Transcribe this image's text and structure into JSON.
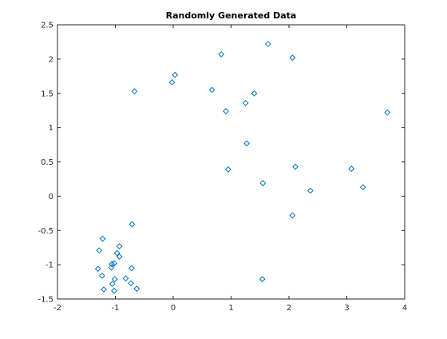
{
  "chart_data": {
    "type": "scatter",
    "title": "Randomly Generated Data",
    "xlabel": "",
    "ylabel": "",
    "xlim": [
      -2,
      4
    ],
    "ylim": [
      -1.5,
      2.5
    ],
    "xticks": [
      -2,
      -1,
      0,
      1,
      2,
      3,
      4
    ],
    "xtick_labels": [
      "-2",
      "-1",
      "0",
      "1",
      "2",
      "3",
      "4"
    ],
    "yticks": [
      -1.5,
      -1,
      -0.5,
      0,
      0.5,
      1,
      1.5,
      2,
      2.5
    ],
    "ytick_labels": [
      "-1.5",
      "-1",
      "-0.5",
      "0",
      "0.5",
      "1",
      "1.5",
      "2",
      "2.5"
    ],
    "grid": false,
    "marker": "diamond",
    "marker_color": "#0072bd",
    "series": [
      {
        "points": [
          [
            -0.67,
            1.53
          ],
          [
            -0.02,
            1.66
          ],
          [
            0.03,
            1.77
          ],
          [
            0.67,
            1.55
          ],
          [
            0.83,
            2.07
          ],
          [
            0.91,
            1.24
          ],
          [
            1.25,
            1.36
          ],
          [
            1.4,
            1.5
          ],
          [
            1.64,
            2.22
          ],
          [
            2.06,
            2.02
          ],
          [
            3.7,
            1.22
          ],
          [
            1.27,
            0.77
          ],
          [
            0.95,
            0.39
          ],
          [
            2.11,
            0.43
          ],
          [
            3.08,
            0.4
          ],
          [
            3.28,
            0.13
          ],
          [
            1.55,
            0.19
          ],
          [
            2.37,
            0.08
          ],
          [
            2.06,
            -0.28
          ],
          [
            1.54,
            -1.21
          ],
          [
            -0.71,
            -0.41
          ],
          [
            -1.22,
            -0.62
          ],
          [
            -1.28,
            -0.79
          ],
          [
            -0.93,
            -0.73
          ],
          [
            -0.97,
            -0.83
          ],
          [
            -0.93,
            -0.88
          ],
          [
            -1.3,
            -1.06
          ],
          [
            -1.06,
            -0.99
          ],
          [
            -1.02,
            -0.98
          ],
          [
            -1.07,
            -1.04
          ],
          [
            -0.72,
            -1.05
          ],
          [
            -1.23,
            -1.16
          ],
          [
            -1.01,
            -1.21
          ],
          [
            -0.82,
            -1.2
          ],
          [
            -1.05,
            -1.28
          ],
          [
            -0.73,
            -1.27
          ],
          [
            -1.2,
            -1.36
          ],
          [
            -0.63,
            -1.35
          ],
          [
            -1.02,
            -1.38
          ]
        ]
      }
    ]
  }
}
